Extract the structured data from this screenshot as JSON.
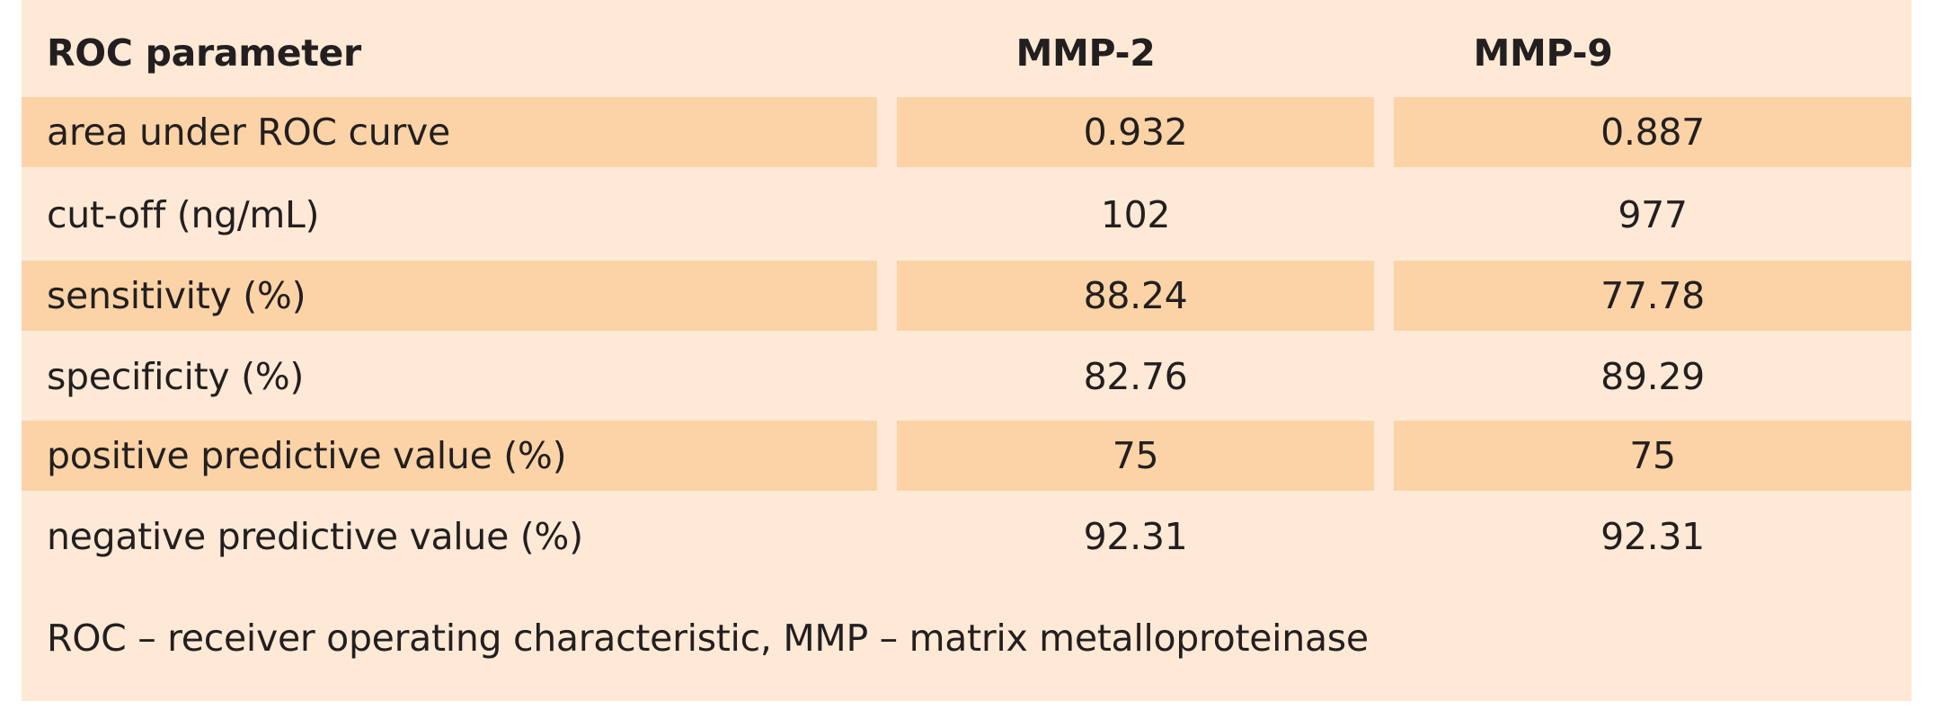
{
  "table": {
    "headers": [
      "ROC parameter",
      "MMP-2",
      "MMP-9"
    ],
    "rows": [
      [
        "area under ROC curve",
        "0.932",
        "0.887"
      ],
      [
        "cut-off (ng/mL)",
        "102",
        "977"
      ],
      [
        "sensitivity (%)",
        "88.24",
        "77.78"
      ],
      [
        "specificity (%)",
        "82.76",
        "89.29"
      ],
      [
        "positive predictive value (%)",
        "75",
        "75"
      ],
      [
        "negative predictive value (%)",
        "92.31",
        "92.31"
      ]
    ],
    "footnote": "ROC – receiver operating characteristic, MMP – matrix metalloproteinase"
  },
  "colors": {
    "panel_background": "#fde9d5",
    "shaded_row": "#fbd3a6",
    "text": "#231f20"
  }
}
